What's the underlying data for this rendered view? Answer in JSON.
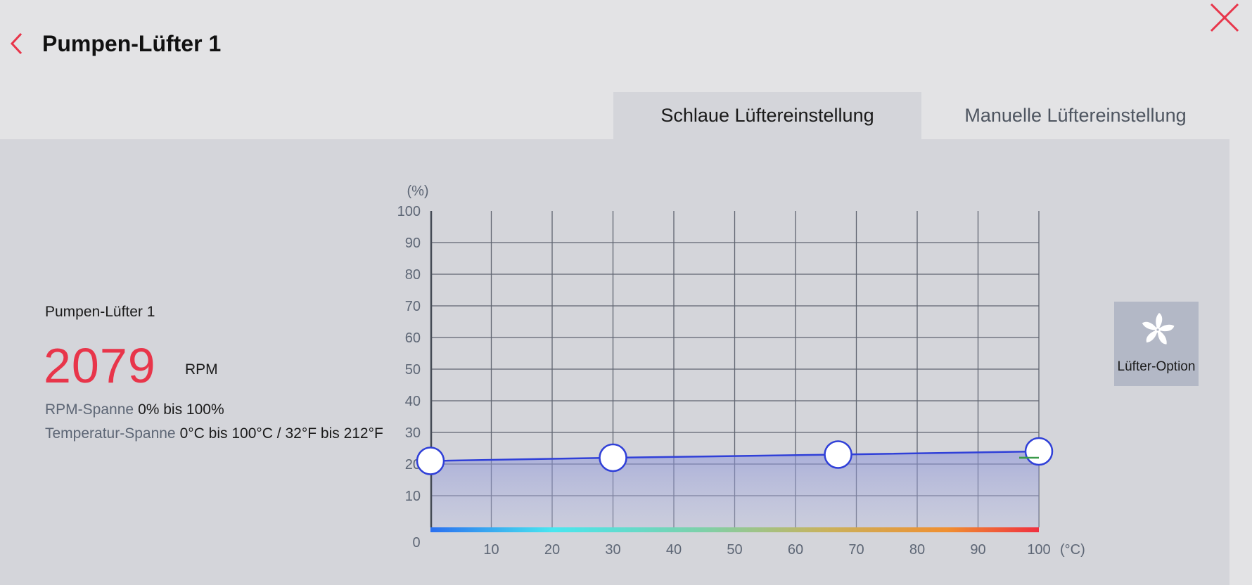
{
  "header": {
    "title": "Pumpen-Lüfter 1"
  },
  "tabs": [
    {
      "label": "Schlaue Lüftereinstellung",
      "active": true
    },
    {
      "label": "Manuelle Lüftereinstellung",
      "active": false
    }
  ],
  "fan_info": {
    "name": "Pumpen-Lüfter 1",
    "rpm": "2079",
    "rpm_unit": "RPM",
    "rpm_range_label": "RPM-Spanne",
    "rpm_range_value": "0% bis 100%",
    "temp_range_label": "Temperatur-Spanne",
    "temp_range_value": "0°C bis 100°C / 32°F bis 212°F"
  },
  "fan_option": {
    "label": "Lüfter-Option",
    "icon": "fan-icon"
  },
  "colors": {
    "accent": "#e8354a",
    "curve": "#3040d8",
    "tab_active_bg": "#d4d5da",
    "background": "#e3e3e5",
    "fan_option_bg": "#b3b8c6"
  },
  "chart_data": {
    "type": "line",
    "xlabel": "(°C)",
    "ylabel": "(%)",
    "xlim": [
      0,
      100
    ],
    "ylim": [
      0,
      100
    ],
    "x_ticks": [
      "0",
      "10",
      "20",
      "30",
      "40",
      "50",
      "60",
      "70",
      "80",
      "90",
      "100"
    ],
    "y_ticks": [
      "10",
      "20",
      "30",
      "40",
      "50",
      "60",
      "70",
      "80",
      "90",
      "100"
    ],
    "grid": true,
    "series": [
      {
        "points": [
          {
            "x": 0,
            "y": 21
          },
          {
            "x": 30,
            "y": 22
          },
          {
            "x": 67,
            "y": 23
          },
          {
            "x": 100,
            "y": 24
          }
        ]
      }
    ],
    "current_indicator": {
      "x": 100,
      "y": 22
    }
  }
}
